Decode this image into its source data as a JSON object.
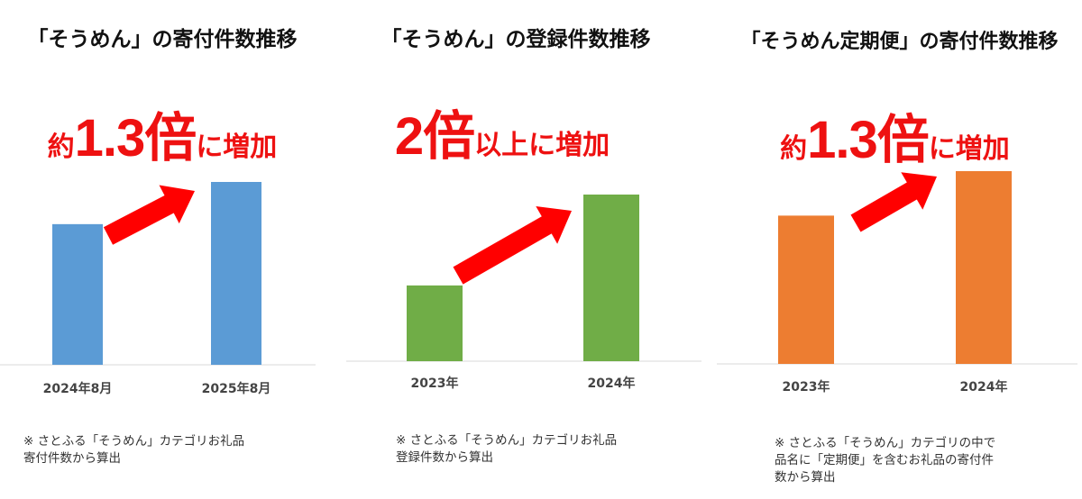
{
  "charts": [
    {
      "title": "「そうめん」の寄付件数推移",
      "headline": {
        "pre": "約",
        "big": "1.3倍",
        "post": "に増加"
      },
      "note_lines": [
        "※ さとふる「そうめん」カテゴリお礼品",
        "寄付件数から算出"
      ],
      "color": "#5b9bd5"
    },
    {
      "title": "「そうめん」の登録件数推移",
      "headline": {
        "pre": "",
        "big": "2倍",
        "post": "以上に増加"
      },
      "note_lines": [
        "※ さとふる「そうめん」カテゴリお礼品",
        "登録件数から算出"
      ],
      "color": "#70ad47"
    },
    {
      "title": "「そうめん定期便」の寄付件数推移",
      "headline": {
        "pre": "約",
        "big": "1.3倍",
        "post": "に増加"
      },
      "note_lines": [
        "※ さとふる「そうめん」カテゴリの中で",
        "品名に「定期便」を含むお礼品の寄付件",
        "数から算出"
      ],
      "color": "#ed7d31"
    }
  ],
  "chart_data": [
    {
      "type": "bar",
      "title": "「そうめん」の寄付件数推移",
      "categories": [
        "2024年8月",
        "2025年8月"
      ],
      "values": [
        1.0,
        1.3
      ],
      "ylabel": "",
      "annotation": "約1.3倍に増加"
    },
    {
      "type": "bar",
      "title": "「そうめん」の登録件数推移",
      "categories": [
        "2023年",
        "2024年"
      ],
      "values": [
        1.0,
        2.2
      ],
      "ylabel": "",
      "annotation": "2倍以上に増加"
    },
    {
      "type": "bar",
      "title": "「そうめん定期便」の寄付件数推移",
      "categories": [
        "2023年",
        "2024年"
      ],
      "values": [
        1.0,
        1.3
      ],
      "ylabel": "",
      "annotation": "約1.3倍に増加"
    }
  ],
  "arrow_color": "#ff0000"
}
